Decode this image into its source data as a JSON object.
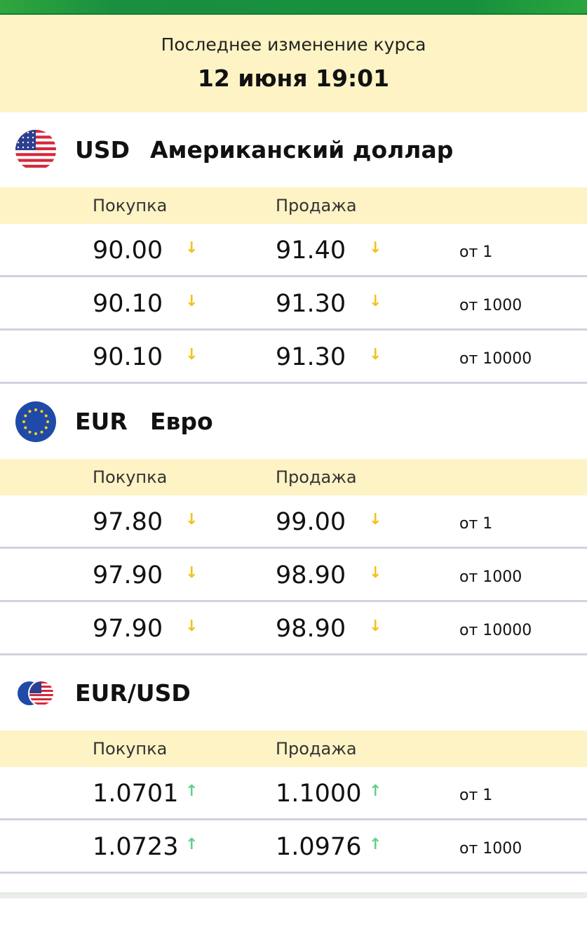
{
  "header": {
    "label": "Последнее изменение курса",
    "datetime": "12 июня 19:01"
  },
  "columns": {
    "buy": "Покупка",
    "sell": "Продажа"
  },
  "colors": {
    "down": "#f2c21b",
    "up": "#5fd08a",
    "accent": "#198f3f",
    "highlight": "#fdf3c4"
  },
  "currencies": [
    {
      "code": "USD",
      "name": "Американский доллар",
      "flag": "us-flag-icon",
      "rows": [
        {
          "buy": "90.00",
          "sell": "91.40",
          "amount": "от 1",
          "trend": "down"
        },
        {
          "buy": "90.10",
          "sell": "91.30",
          "amount": "от 1000",
          "trend": "down"
        },
        {
          "buy": "90.10",
          "sell": "91.30",
          "amount": "от 10000",
          "trend": "down"
        }
      ]
    },
    {
      "code": "EUR",
      "name": "Евро",
      "flag": "eu-flag-icon",
      "rows": [
        {
          "buy": "97.80",
          "sell": "99.00",
          "amount": "от 1",
          "trend": "down"
        },
        {
          "buy": "97.90",
          "sell": "98.90",
          "amount": "от 1000",
          "trend": "down"
        },
        {
          "buy": "97.90",
          "sell": "98.90",
          "amount": "от 10000",
          "trend": "down"
        }
      ]
    },
    {
      "code": "EUR/USD",
      "name": "",
      "flag": "eur-usd-flag-icon",
      "rows": [
        {
          "buy": "1.0701",
          "sell": "1.1000",
          "amount": "от 1",
          "trend": "up"
        },
        {
          "buy": "1.0723",
          "sell": "1.0976",
          "amount": "от 1000",
          "trend": "up"
        }
      ]
    }
  ]
}
